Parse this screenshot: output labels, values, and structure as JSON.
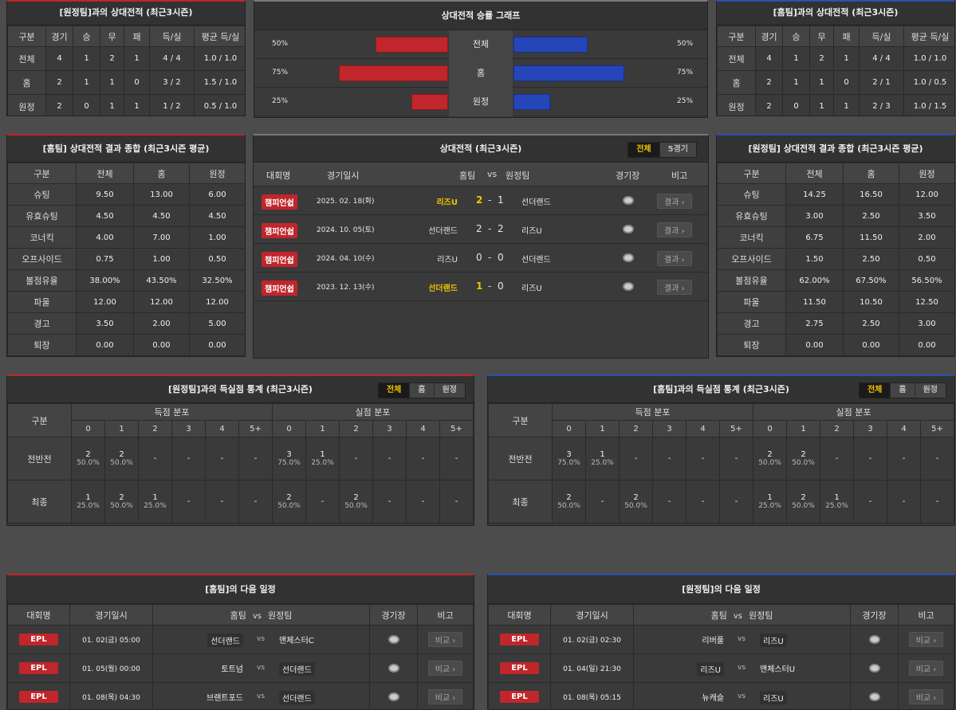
{
  "h2h_away": {
    "title": "[원정팀]과의 상대전적 (최근3시즌)",
    "headers": [
      "구분",
      "경기",
      "승",
      "무",
      "패",
      "득/실",
      "평균 득/실"
    ],
    "rows": [
      [
        "전체",
        "4",
        "1",
        "2",
        "1",
        "4 / 4",
        "1.0 / 1.0"
      ],
      [
        "홈",
        "2",
        "1",
        "1",
        "0",
        "3 / 2",
        "1.5 / 1.0"
      ],
      [
        "원정",
        "2",
        "0",
        "1",
        "1",
        "1 / 2",
        "0.5 / 1.0"
      ]
    ]
  },
  "graph": {
    "title": "상대전적 승률 그래프",
    "rows": [
      {
        "label": "전체",
        "left": "50%",
        "right": "50%",
        "lv": 50,
        "rv": 50
      },
      {
        "label": "홈",
        "left": "75%",
        "right": "75%",
        "lv": 75,
        "rv": 75
      },
      {
        "label": "원정",
        "left": "25%",
        "right": "25%",
        "lv": 25,
        "rv": 25
      }
    ]
  },
  "h2h_home": {
    "title": "[홈팀]과의 상대전적 (최근3시즌)",
    "headers": [
      "구분",
      "경기",
      "승",
      "무",
      "패",
      "득/실",
      "평균 득/실"
    ],
    "rows": [
      [
        "전체",
        "4",
        "1",
        "2",
        "1",
        "4 / 4",
        "1.0 / 1.0"
      ],
      [
        "홈",
        "2",
        "1",
        "1",
        "0",
        "2 / 1",
        "1.0 / 0.5"
      ],
      [
        "원정",
        "2",
        "0",
        "1",
        "1",
        "2 / 3",
        "1.0 / 1.5"
      ]
    ]
  },
  "sum_home": {
    "title": "[홈팀] 상대전적 결과 종합 (최근3시즌 평균)",
    "headers": [
      "구분",
      "전체",
      "홈",
      "원정"
    ],
    "rows": [
      [
        "슈팅",
        "9.50",
        "13.00",
        "6.00"
      ],
      [
        "유효슈팅",
        "4.50",
        "4.50",
        "4.50"
      ],
      [
        "코너킥",
        "4.00",
        "7.00",
        "1.00"
      ],
      [
        "오프사이드",
        "0.75",
        "1.00",
        "0.50"
      ],
      [
        "볼점유율",
        "38.00%",
        "43.50%",
        "32.50%"
      ],
      [
        "파울",
        "12.00",
        "12.00",
        "12.00"
      ],
      [
        "경고",
        "3.50",
        "2.00",
        "5.00"
      ],
      [
        "퇴장",
        "0.00",
        "0.00",
        "0.00"
      ]
    ]
  },
  "sum_away": {
    "title": "[원정팀] 상대전적 결과 종합 (최근3시즌 평균)",
    "headers": [
      "구분",
      "전체",
      "홈",
      "원정"
    ],
    "rows": [
      [
        "슈팅",
        "14.25",
        "16.50",
        "12.00"
      ],
      [
        "유효슈팅",
        "3.00",
        "2.50",
        "3.50"
      ],
      [
        "코너킥",
        "6.75",
        "11.50",
        "2.00"
      ],
      [
        "오프사이드",
        "1.50",
        "2.50",
        "0.50"
      ],
      [
        "볼점유율",
        "62.00%",
        "67.50%",
        "56.50%"
      ],
      [
        "파울",
        "11.50",
        "10.50",
        "12.50"
      ],
      [
        "경고",
        "2.75",
        "2.50",
        "3.00"
      ],
      [
        "퇴장",
        "0.00",
        "0.00",
        "0.00"
      ]
    ]
  },
  "recent": {
    "title": "상대전적 (최근3시즌)",
    "toggle": [
      "전체",
      "5경기"
    ],
    "headers": {
      "league": "대회명",
      "date": "경기일시",
      "home": "홈팀",
      "vs": "vs",
      "away": "원정팀",
      "venue": "경기장",
      "note": "비고"
    },
    "result_label": "결과 ›",
    "rows": [
      {
        "league": "챔피언쉽",
        "date": "2025. 02. 18(화)",
        "home": "리즈U",
        "hs": "2",
        "as": "1",
        "away": "선더랜드",
        "win": "home"
      },
      {
        "league": "챔피언쉽",
        "date": "2024. 10. 05(토)",
        "home": "선더랜드",
        "hs": "2",
        "as": "2",
        "away": "리즈U",
        "win": ""
      },
      {
        "league": "챔피언쉽",
        "date": "2024. 04. 10(수)",
        "home": "리즈U",
        "hs": "0",
        "as": "0",
        "away": "선더랜드",
        "win": ""
      },
      {
        "league": "챔피언쉽",
        "date": "2023. 12. 13(수)",
        "home": "선더랜드",
        "hs": "1",
        "as": "0",
        "away": "리즈U",
        "win": "home"
      }
    ]
  },
  "goals_away": {
    "title": "[원정팀]과의 득실점 통계 (최근3시즌)",
    "toggle": [
      "전체",
      "홈",
      "원정"
    ],
    "col_label": "구분",
    "scored": "득점 분포",
    "conceded": "실점 분포",
    "buckets": [
      "0",
      "1",
      "2",
      "3",
      "4",
      "5+"
    ],
    "rows": [
      {
        "label": "전반전",
        "s": [
          [
            "2",
            "50.0%"
          ],
          [
            "2",
            "50.0%"
          ],
          [
            "-",
            ""
          ],
          [
            "-",
            ""
          ],
          [
            "-",
            ""
          ],
          [
            "-",
            ""
          ]
        ],
        "c": [
          [
            "3",
            "75.0%"
          ],
          [
            "1",
            "25.0%"
          ],
          [
            "-",
            ""
          ],
          [
            "-",
            ""
          ],
          [
            "-",
            ""
          ],
          [
            "-",
            ""
          ]
        ]
      },
      {
        "label": "최종",
        "s": [
          [
            "1",
            "25.0%"
          ],
          [
            "2",
            "50.0%"
          ],
          [
            "1",
            "25.0%"
          ],
          [
            "-",
            ""
          ],
          [
            "-",
            ""
          ],
          [
            "-",
            ""
          ]
        ],
        "c": [
          [
            "2",
            "50.0%"
          ],
          [
            "-",
            ""
          ],
          [
            "2",
            "50.0%"
          ],
          [
            "-",
            ""
          ],
          [
            "-",
            ""
          ],
          [
            "-",
            ""
          ]
        ]
      }
    ]
  },
  "goals_home": {
    "title": "[홈팀]과의 득실점 통계 (최근3시즌)",
    "toggle": [
      "전체",
      "홈",
      "원정"
    ],
    "col_label": "구분",
    "scored": "득점 분포",
    "conceded": "실점 분포",
    "buckets": [
      "0",
      "1",
      "2",
      "3",
      "4",
      "5+"
    ],
    "rows": [
      {
        "label": "전반전",
        "s": [
          [
            "3",
            "75.0%"
          ],
          [
            "1",
            "25.0%"
          ],
          [
            "-",
            ""
          ],
          [
            "-",
            ""
          ],
          [
            "-",
            ""
          ],
          [
            "-",
            ""
          ]
        ],
        "c": [
          [
            "2",
            "50.0%"
          ],
          [
            "2",
            "50.0%"
          ],
          [
            "-",
            ""
          ],
          [
            "-",
            ""
          ],
          [
            "-",
            ""
          ],
          [
            "-",
            ""
          ]
        ]
      },
      {
        "label": "최종",
        "s": [
          [
            "2",
            "50.0%"
          ],
          [
            "-",
            ""
          ],
          [
            "2",
            "50.0%"
          ],
          [
            "-",
            ""
          ],
          [
            "-",
            ""
          ],
          [
            "-",
            ""
          ]
        ],
        "c": [
          [
            "1",
            "25.0%"
          ],
          [
            "2",
            "50.0%"
          ],
          [
            "1",
            "25.0%"
          ],
          [
            "-",
            ""
          ],
          [
            "-",
            ""
          ],
          [
            "-",
            ""
          ]
        ]
      }
    ]
  },
  "next_home": {
    "title": "[홈팀]의 다음 일정",
    "headers": {
      "league": "대회명",
      "date": "경기일시",
      "home": "홈팀",
      "vs": "vs",
      "away": "원정팀",
      "venue": "경기장",
      "note": "비고"
    },
    "btn": "비교 ›",
    "rows": [
      {
        "league": "EPL",
        "date": "01. 02(금) 05:00",
        "home": "선더랜드",
        "away": "맨체스터C",
        "hlHome": true
      },
      {
        "league": "EPL",
        "date": "01. 05(월) 00:00",
        "home": "토트넘",
        "away": "선더랜드",
        "hlHome": false
      },
      {
        "league": "EPL",
        "date": "01. 08(목) 04:30",
        "home": "브렌트포드",
        "away": "선더랜드",
        "hlHome": false
      }
    ]
  },
  "next_away": {
    "title": "[원정팀]의 다음 일정",
    "headers": {
      "league": "대회명",
      "date": "경기일시",
      "home": "홈팀",
      "vs": "vs",
      "away": "원정팀",
      "venue": "경기장",
      "note": "비고"
    },
    "btn": "비교 ›",
    "rows": [
      {
        "league": "EPL",
        "date": "01. 02(금) 02:30",
        "home": "리버풀",
        "away": "리즈U",
        "hlHome": false
      },
      {
        "league": "EPL",
        "date": "01. 04(일) 21:30",
        "home": "리즈U",
        "away": "맨체스터U",
        "hlHome": true
      },
      {
        "league": "EPL",
        "date": "01. 08(목) 05:15",
        "home": "뉴캐슬",
        "away": "리즈U",
        "hlHome": false
      }
    ]
  }
}
